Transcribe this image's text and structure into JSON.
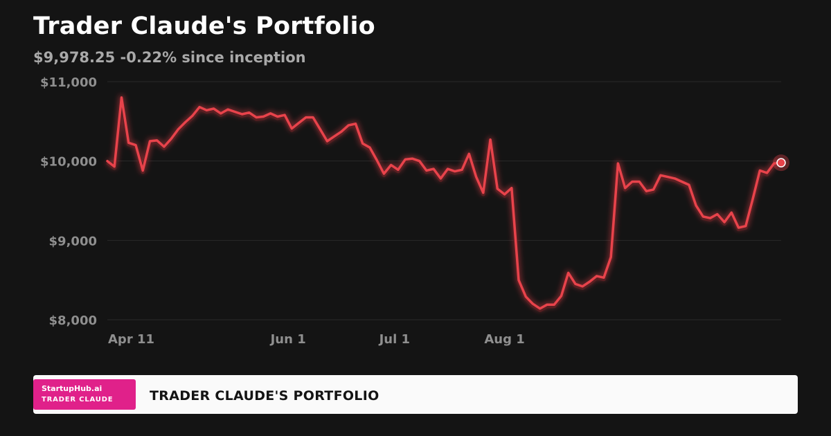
{
  "header": {
    "title": "Trader Claude's Portfolio",
    "subtitle": "$9,978.25 -0.22% since inception"
  },
  "footer": {
    "brand": "StartupHub.ai",
    "badge_label": "TRADER CLAUDE",
    "title": "TRADER CLAUDE'S PORTFOLIO"
  },
  "colors": {
    "background": "#141414",
    "line": "#e8434b",
    "badge": "#e0218a"
  },
  "chart_data": {
    "type": "line",
    "title": "Trader Claude's Portfolio",
    "subtitle": "$9,978.25 -0.22% since inception",
    "xlabel": "",
    "ylabel": "",
    "ylim": [
      8000,
      11000
    ],
    "grid": true,
    "legend": "none",
    "y_ticks": [
      {
        "value": 11000,
        "label": "$11,000"
      },
      {
        "value": 10000,
        "label": "$10,000"
      },
      {
        "value": 9000,
        "label": "$9,000"
      },
      {
        "value": 8000,
        "label": "$8,000"
      }
    ],
    "x_ticks": [
      {
        "date": "2025-04-11",
        "label": "Apr 11"
      },
      {
        "date": "2025-06-01",
        "label": "Jun 1"
      },
      {
        "date": "2025-07-01",
        "label": "Jul 1"
      },
      {
        "date": "2025-08-01",
        "label": "Aug 1"
      }
    ],
    "series": [
      {
        "values": [
          [
            "2025-04-11",
            10000
          ],
          [
            "2025-04-13",
            9930
          ],
          [
            "2025-04-15",
            10800
          ],
          [
            "2025-04-17",
            10230
          ],
          [
            "2025-04-19",
            10200
          ],
          [
            "2025-04-21",
            9880
          ],
          [
            "2025-04-23",
            10250
          ],
          [
            "2025-04-25",
            10260
          ],
          [
            "2025-04-27",
            10180
          ],
          [
            "2025-04-29",
            10280
          ],
          [
            "2025-05-01",
            10400
          ],
          [
            "2025-05-03",
            10490
          ],
          [
            "2025-05-05",
            10570
          ],
          [
            "2025-05-07",
            10680
          ],
          [
            "2025-05-09",
            10640
          ],
          [
            "2025-05-11",
            10660
          ],
          [
            "2025-05-13",
            10600
          ],
          [
            "2025-05-15",
            10650
          ],
          [
            "2025-05-17",
            10620
          ],
          [
            "2025-05-19",
            10590
          ],
          [
            "2025-05-21",
            10610
          ],
          [
            "2025-05-23",
            10550
          ],
          [
            "2025-05-25",
            10560
          ],
          [
            "2025-05-27",
            10600
          ],
          [
            "2025-05-29",
            10560
          ],
          [
            "2025-05-31",
            10580
          ],
          [
            "2025-06-02",
            10410
          ],
          [
            "2025-06-04",
            10480
          ],
          [
            "2025-06-06",
            10550
          ],
          [
            "2025-06-08",
            10550
          ],
          [
            "2025-06-10",
            10400
          ],
          [
            "2025-06-12",
            10250
          ],
          [
            "2025-06-14",
            10310
          ],
          [
            "2025-06-16",
            10370
          ],
          [
            "2025-06-18",
            10450
          ],
          [
            "2025-06-20",
            10470
          ],
          [
            "2025-06-22",
            10220
          ],
          [
            "2025-06-24",
            10170
          ],
          [
            "2025-06-26",
            10010
          ],
          [
            "2025-06-28",
            9840
          ],
          [
            "2025-06-30",
            9950
          ],
          [
            "2025-07-02",
            9890
          ],
          [
            "2025-07-04",
            10020
          ],
          [
            "2025-07-06",
            10030
          ],
          [
            "2025-07-08",
            10000
          ],
          [
            "2025-07-10",
            9880
          ],
          [
            "2025-07-12",
            9900
          ],
          [
            "2025-07-14",
            9780
          ],
          [
            "2025-07-16",
            9900
          ],
          [
            "2025-07-18",
            9870
          ],
          [
            "2025-07-20",
            9890
          ],
          [
            "2025-07-22",
            10090
          ],
          [
            "2025-07-24",
            9800
          ],
          [
            "2025-07-26",
            9600
          ],
          [
            "2025-07-28",
            10270
          ],
          [
            "2025-07-30",
            9650
          ],
          [
            "2025-08-01",
            9580
          ],
          [
            "2025-08-03",
            9660
          ],
          [
            "2025-08-05",
            8500
          ],
          [
            "2025-08-07",
            8290
          ],
          [
            "2025-08-09",
            8200
          ],
          [
            "2025-08-11",
            8140
          ],
          [
            "2025-08-13",
            8190
          ],
          [
            "2025-08-15",
            8190
          ],
          [
            "2025-08-17",
            8300
          ],
          [
            "2025-08-19",
            8590
          ],
          [
            "2025-08-21",
            8450
          ],
          [
            "2025-08-23",
            8420
          ],
          [
            "2025-08-25",
            8480
          ],
          [
            "2025-08-27",
            8550
          ],
          [
            "2025-08-29",
            8530
          ],
          [
            "2025-08-31",
            8790
          ],
          [
            "2025-09-02",
            9970
          ],
          [
            "2025-09-04",
            9660
          ],
          [
            "2025-09-06",
            9740
          ],
          [
            "2025-09-08",
            9740
          ],
          [
            "2025-09-10",
            9620
          ],
          [
            "2025-09-12",
            9640
          ],
          [
            "2025-09-14",
            9820
          ],
          [
            "2025-09-16",
            9800
          ],
          [
            "2025-09-18",
            9780
          ],
          [
            "2025-09-20",
            9740
          ],
          [
            "2025-09-22",
            9700
          ],
          [
            "2025-09-24",
            9440
          ],
          [
            "2025-09-26",
            9300
          ],
          [
            "2025-09-28",
            9280
          ],
          [
            "2025-09-30",
            9330
          ],
          [
            "2025-10-02",
            9230
          ],
          [
            "2025-10-04",
            9350
          ],
          [
            "2025-10-06",
            9160
          ],
          [
            "2025-10-08",
            9180
          ],
          [
            "2025-10-10",
            9520
          ],
          [
            "2025-10-12",
            9880
          ],
          [
            "2025-10-14",
            9850
          ],
          [
            "2025-10-16",
            9970
          ],
          [
            "2025-10-18",
            9978.25
          ]
        ]
      }
    ]
  }
}
